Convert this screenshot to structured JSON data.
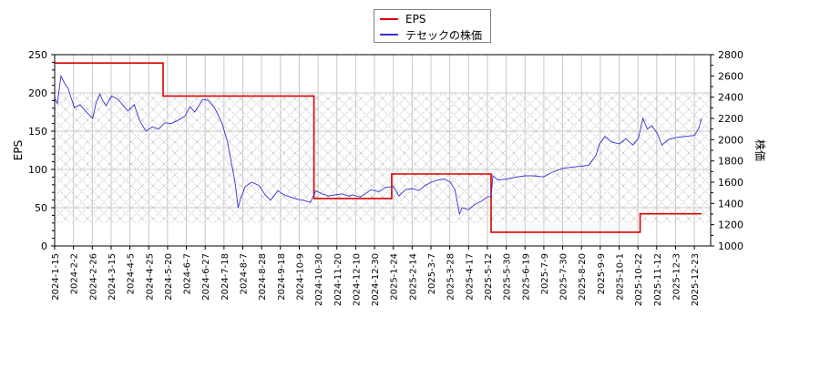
{
  "chart_data": {
    "type": "line",
    "title": "",
    "xlabel": "",
    "ylabel": "EPS",
    "y2label": "株価",
    "ylim": [
      0,
      250
    ],
    "y2lim": [
      1000,
      2800
    ],
    "yticks": [
      0,
      50,
      100,
      150,
      200,
      250
    ],
    "y2ticks": [
      1000,
      1200,
      1400,
      1600,
      1800,
      2000,
      2200,
      2400,
      2600,
      2800
    ],
    "grid": true,
    "hatch_band": {
      "ylow": 30,
      "yhigh": 200
    },
    "legend_position": "top-center",
    "categories": [
      "2024-1-15",
      "2024-2-2",
      "2024-2-26",
      "2024-3-15",
      "2024-4-5",
      "2024-4-25",
      "2024-5-20",
      "2024-6-7",
      "2024-6-27",
      "2024-7-18",
      "2024-8-7",
      "2024-8-28",
      "2024-9-18",
      "2024-10-9",
      "2024-10-30",
      "2024-11-20",
      "2024-12-10",
      "2024-12-30",
      "2025-1-24",
      "2025-2-14",
      "2025-3-7",
      "2025-3-28",
      "2025-4-17",
      "2025-5-12",
      "2025-5-30",
      "2025-6-19",
      "2025-7-9",
      "2025-7-30",
      "2025-8-20",
      "2025-9-9",
      "2025-10-1",
      "2025-10-22",
      "2025-11-12",
      "2025-12-3",
      "2025-12-23"
    ],
    "series": [
      {
        "name": "EPS",
        "color": "#dd0000",
        "axis": "left",
        "steps": [
          {
            "from": "2024-1-15",
            "to": "2024-5-14",
            "value": 239
          },
          {
            "from": "2024-5-14",
            "to": "2024-10-28",
            "value": 196
          },
          {
            "from": "2024-10-28",
            "to": "2025-1-22",
            "value": 62
          },
          {
            "from": "2025-1-22",
            "to": "2025-5-12",
            "value": 94
          },
          {
            "from": "2025-5-12",
            "to": "2025-10-24",
            "value": 18
          },
          {
            "from": "2025-10-24",
            "to": "2025-12-31",
            "value": 42
          }
        ]
      },
      {
        "name": "テセックの株価",
        "color": "#3333cc",
        "axis": "right",
        "points": [
          [
            "2024-1-15",
            2390
          ],
          [
            "2024-1-18",
            2340
          ],
          [
            "2024-1-22",
            2600
          ],
          [
            "2024-1-26",
            2530
          ],
          [
            "2024-1-30",
            2480
          ],
          [
            "2024-2-2",
            2400
          ],
          [
            "2024-2-6",
            2300
          ],
          [
            "2024-2-12",
            2330
          ],
          [
            "2024-2-18",
            2270
          ],
          [
            "2024-2-26",
            2200
          ],
          [
            "2024-3-1",
            2350
          ],
          [
            "2024-3-5",
            2430
          ],
          [
            "2024-3-8",
            2370
          ],
          [
            "2024-3-12",
            2320
          ],
          [
            "2024-3-18",
            2410
          ],
          [
            "2024-3-25",
            2380
          ],
          [
            "2024-4-1",
            2310
          ],
          [
            "2024-4-5",
            2270
          ],
          [
            "2024-4-12",
            2330
          ],
          [
            "2024-4-18",
            2180
          ],
          [
            "2024-4-25",
            2080
          ],
          [
            "2024-5-2",
            2120
          ],
          [
            "2024-5-9",
            2100
          ],
          [
            "2024-5-16",
            2160
          ],
          [
            "2024-5-23",
            2150
          ],
          [
            "2024-5-30",
            2180
          ],
          [
            "2024-6-7",
            2220
          ],
          [
            "2024-6-13",
            2310
          ],
          [
            "2024-6-18",
            2260
          ],
          [
            "2024-6-27",
            2380
          ],
          [
            "2024-7-3",
            2370
          ],
          [
            "2024-7-10",
            2300
          ],
          [
            "2024-7-18",
            2160
          ],
          [
            "2024-7-24",
            1990
          ],
          [
            "2024-7-30",
            1720
          ],
          [
            "2024-8-2",
            1580
          ],
          [
            "2024-8-5",
            1360
          ],
          [
            "2024-8-8",
            1450
          ],
          [
            "2024-8-13",
            1560
          ],
          [
            "2024-8-20",
            1600
          ],
          [
            "2024-8-28",
            1570
          ],
          [
            "2024-9-4",
            1480
          ],
          [
            "2024-9-10",
            1430
          ],
          [
            "2024-9-18",
            1520
          ],
          [
            "2024-9-25",
            1480
          ],
          [
            "2024-10-2",
            1460
          ],
          [
            "2024-10-9",
            1440
          ],
          [
            "2024-10-16",
            1430
          ],
          [
            "2024-10-24",
            1410
          ],
          [
            "2024-10-30",
            1520
          ],
          [
            "2024-11-6",
            1490
          ],
          [
            "2024-11-13",
            1470
          ],
          [
            "2024-11-20",
            1480
          ],
          [
            "2024-11-28",
            1490
          ],
          [
            "2024-12-5",
            1470
          ],
          [
            "2024-12-10",
            1480
          ],
          [
            "2024-12-18",
            1460
          ],
          [
            "2024-12-24",
            1490
          ],
          [
            "2024-12-30",
            1530
          ],
          [
            "2025-1-8",
            1510
          ],
          [
            "2025-1-15",
            1550
          ],
          [
            "2025-1-24",
            1560
          ],
          [
            "2025-1-30",
            1470
          ],
          [
            "2025-2-6",
            1530
          ],
          [
            "2025-2-14",
            1540
          ],
          [
            "2025-2-21",
            1520
          ],
          [
            "2025-2-28",
            1570
          ],
          [
            "2025-3-7",
            1600
          ],
          [
            "2025-3-14",
            1620
          ],
          [
            "2025-3-21",
            1630
          ],
          [
            "2025-3-28",
            1600
          ],
          [
            "2025-4-2",
            1530
          ],
          [
            "2025-4-7",
            1300
          ],
          [
            "2025-4-10",
            1360
          ],
          [
            "2025-4-17",
            1340
          ],
          [
            "2025-4-24",
            1390
          ],
          [
            "2025-5-1",
            1420
          ],
          [
            "2025-5-8",
            1460
          ],
          [
            "2025-5-12",
            1470
          ],
          [
            "2025-5-14",
            1660
          ],
          [
            "2025-5-20",
            1620
          ],
          [
            "2025-5-30",
            1630
          ],
          [
            "2025-6-10",
            1650
          ],
          [
            "2025-6-19",
            1660
          ],
          [
            "2025-6-28",
            1660
          ],
          [
            "2025-7-9",
            1650
          ],
          [
            "2025-7-18",
            1690
          ],
          [
            "2025-7-30",
            1730
          ],
          [
            "2025-8-8",
            1740
          ],
          [
            "2025-8-20",
            1750
          ],
          [
            "2025-8-28",
            1760
          ],
          [
            "2025-9-5",
            1850
          ],
          [
            "2025-9-9",
            1960
          ],
          [
            "2025-9-15",
            2030
          ],
          [
            "2025-9-22",
            1980
          ],
          [
            "2025-10-1",
            1960
          ],
          [
            "2025-10-8",
            2010
          ],
          [
            "2025-10-16",
            1950
          ],
          [
            "2025-10-22",
            2010
          ],
          [
            "2025-10-27",
            2200
          ],
          [
            "2025-11-1",
            2100
          ],
          [
            "2025-11-6",
            2130
          ],
          [
            "2025-11-12",
            2060
          ],
          [
            "2025-11-17",
            1950
          ],
          [
            "2025-11-24",
            2000
          ],
          [
            "2025-12-3",
            2020
          ],
          [
            "2025-12-12",
            2030
          ],
          [
            "2025-12-23",
            2040
          ],
          [
            "2025-12-28",
            2110
          ],
          [
            "2025-12-31",
            2200
          ]
        ]
      }
    ]
  },
  "legend": {
    "items": [
      {
        "label": "EPS",
        "color": "#dd0000"
      },
      {
        "label": "テセックの株価",
        "color": "#3333cc"
      }
    ]
  },
  "axes": {
    "left_label": "EPS",
    "right_label": "株価"
  }
}
